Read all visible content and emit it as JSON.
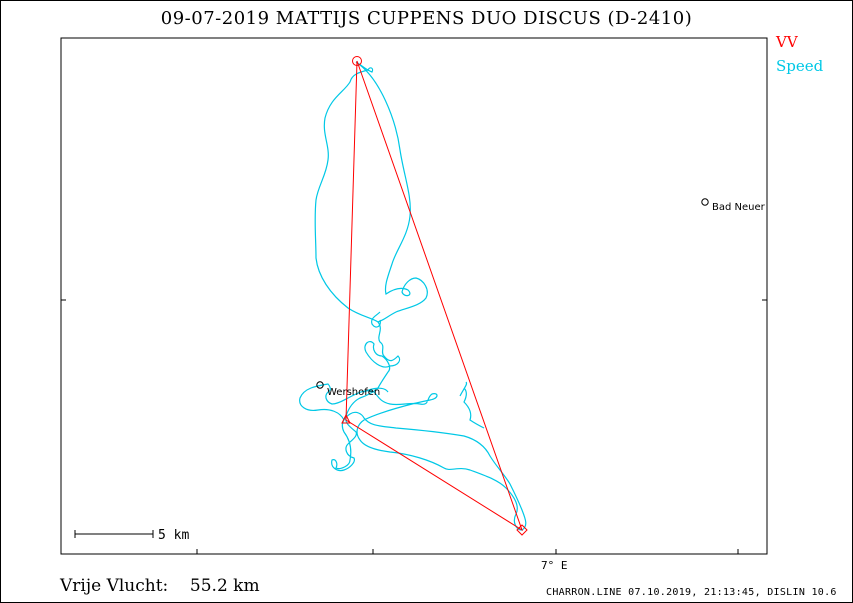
{
  "header": {
    "title": "09-07-2019   MATTIJS CUPPENS   DUO DISCUS (D-2410)"
  },
  "legend": {
    "items": [
      {
        "label": "VV",
        "color": "#ff0000"
      },
      {
        "label": "Speed",
        "color": "#00c8e6"
      }
    ]
  },
  "map": {
    "places": [
      {
        "name": "Bad Neuer"
      },
      {
        "name": "Wershofen"
      }
    ],
    "scale_label": "5 km",
    "axis_label": "7° E"
  },
  "footer": {
    "free_flight_label": "Vrije Vlucht:",
    "free_flight_value": "55.2 km",
    "credit": "CHARRON.LINE 07.10.2019, 21:13:45, DISLIN 10.6"
  },
  "colors": {
    "task_line": "#ff0000",
    "track": "#00c8e6",
    "frame": "#000000"
  }
}
